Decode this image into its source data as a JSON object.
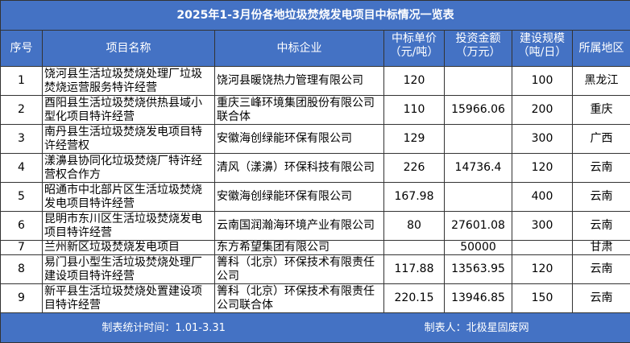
{
  "title": "2025年1-3月份各地垃圾焚烧发电项目中标情况一览表",
  "headers": [
    "序号",
    "项目名称",
    "中标企业",
    "中标单价（元/吨）",
    "投资金额（万元）",
    "建设规模（吨/日）",
    "所属地区"
  ],
  "rows": [
    {
      "no": "1",
      "name": "饶河县生活垃圾焚烧处理厂垃圾焚烧运营服务特许经营",
      "company": "饶河县暖饶热力管理有限公司",
      "price": "120",
      "invest": "",
      "scale": "100",
      "region": "黑龙江"
    },
    {
      "no": "2",
      "name": "酉阳县生活垃圾焚烧供热县域小型化项目特许经营",
      "company": "重庆三峰环境集团股份有限公司联合体",
      "price": "110",
      "invest": "15966.06",
      "scale": "200",
      "region": "重庆"
    },
    {
      "no": "3",
      "name": "南丹县生活垃圾焚烧发电项目特许经营权",
      "company": "安徽海创绿能环保有限公司",
      "price": "129",
      "invest": "",
      "scale": "300",
      "region": "广西"
    },
    {
      "no": "4",
      "name": "漾濞县协同化垃圾焚烧厂特许经营权合作方",
      "company": "清风（漾濞）环保科技有限公司",
      "price": "226",
      "invest": "14736.4",
      "scale": "120",
      "region": "云南"
    },
    {
      "no": "5",
      "name": "昭通市中北部片区生活垃圾焚烧发电项目特许经营",
      "company": "安徽海创绿能环保有限公司",
      "price": "167.98",
      "invest": "",
      "scale": "400",
      "region": "云南"
    },
    {
      "no": "6",
      "name": "昆明市东川区生活垃圾焚烧发电项目特许经营",
      "company": "云南国润瀚海环境产业有限公司",
      "price": "80",
      "invest": "27601.08",
      "scale": "300",
      "region": "云南"
    },
    {
      "no": "7",
      "name": "兰州新区垃圾焚烧发电项目",
      "company": "东方希望集团有限公司",
      "price": "",
      "invest": "50000",
      "scale": "",
      "region": "甘肃"
    },
    {
      "no": "8",
      "name": "易门县小型生活垃圾焚烧处理厂建设项目特许经营",
      "company": "箐科（北京）环保技术有限责任公司",
      "price": "117.88",
      "invest": "13563.95",
      "scale": "120",
      "region": "云南"
    },
    {
      "no": "9",
      "name": "新平县生活垃圾焚烧处置建设项目特许经营",
      "company": "箐科（北京）环保技术有限责任公司联合体",
      "price": "220.15",
      "invest": "13946.85",
      "scale": "150",
      "region": "云南"
    }
  ],
  "footer": {
    "period": "制表统计时间：1.01-3.31",
    "author": "制表人：北极星固废网"
  },
  "colors": {
    "header_bg": "#4472C4"
  }
}
